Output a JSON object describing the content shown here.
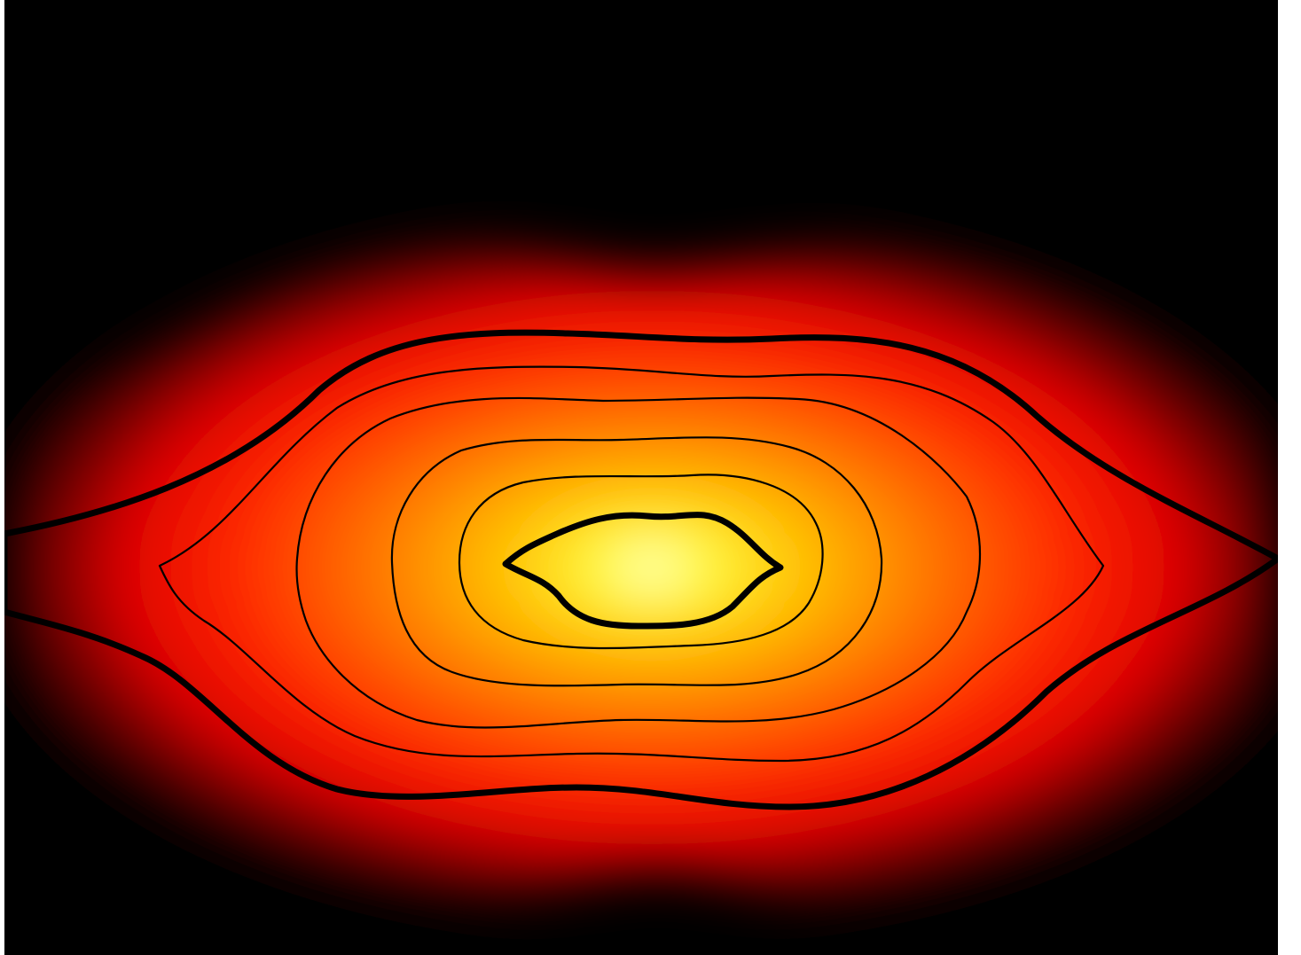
{
  "chart_data": {
    "type": "heatmap",
    "subtype": "filled-contour",
    "title": "",
    "xlabel": "",
    "ylabel": "",
    "colormap": [
      "#000000",
      "#d40000",
      "#ff1a00",
      "#ff7a00",
      "#ffd000",
      "#ffff40",
      "#ffffff"
    ],
    "background": "#000000",
    "contours": [
      {
        "level": 1,
        "style": "thick"
      },
      {
        "level": 2,
        "style": "thin"
      },
      {
        "level": 3,
        "style": "thin"
      },
      {
        "level": 4,
        "style": "thin"
      },
      {
        "level": 5,
        "style": "thin"
      },
      {
        "level": 6,
        "style": "thick"
      }
    ],
    "colors": {
      "contour_line": "#000000",
      "peak": "#ffffff",
      "background": "#000000"
    }
  }
}
